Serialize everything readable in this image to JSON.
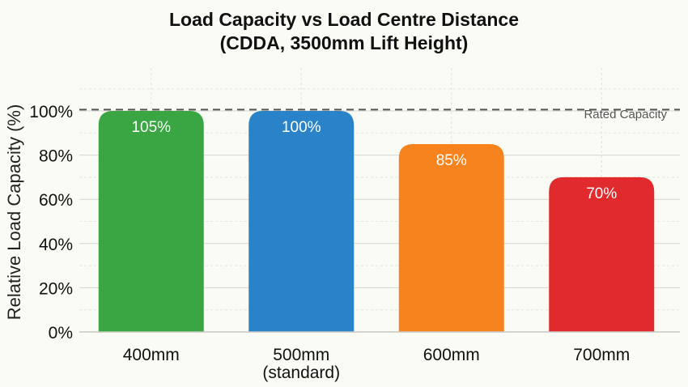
{
  "chart_data": {
    "type": "bar",
    "title": "Load Capacity vs Load Centre Distance",
    "subtitle": "(CDDA, 3500mm Lift Height)",
    "ylabel": "Relative Load Capacity (%)",
    "xlabel": "",
    "categories": [
      "400mm",
      "500mm",
      "600mm",
      "700mm"
    ],
    "category_sublabels": [
      "",
      "(standard)",
      "",
      ""
    ],
    "values": [
      105,
      100,
      85,
      70
    ],
    "value_labels": [
      "105%",
      "100%",
      "85%",
      "70%"
    ],
    "ylim": [
      0,
      110
    ],
    "ytick_values": [
      0,
      20,
      40,
      60,
      80,
      100
    ],
    "ytick_labels": [
      "0%",
      "20%",
      "40%",
      "60%",
      "80%",
      "100%"
    ],
    "colors": [
      "#3aa543",
      "#2a83c8",
      "#f7831f",
      "#e02a2e"
    ],
    "reference_line": {
      "value": 105,
      "label": "Rated Capacity",
      "style": "dashed",
      "color": "#555555"
    },
    "grid": true,
    "legend": "none"
  }
}
